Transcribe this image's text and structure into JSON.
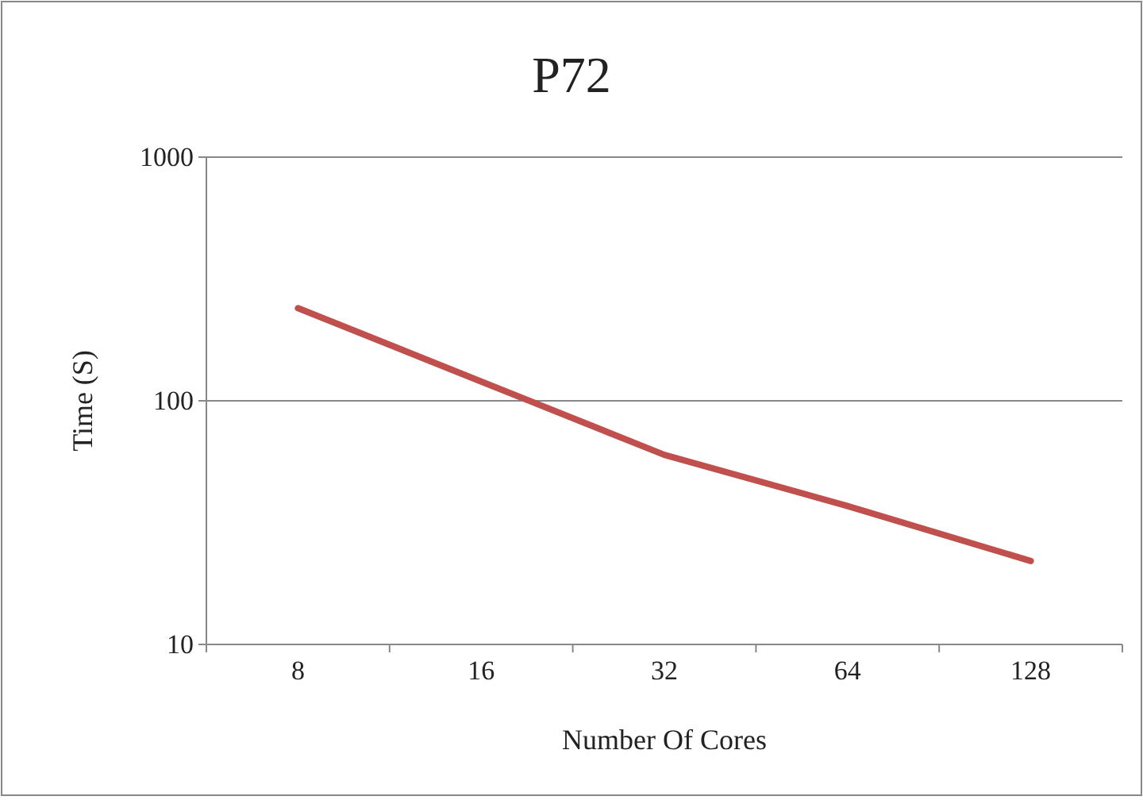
{
  "chart_data": {
    "type": "line",
    "title": "P72",
    "xlabel": "Number Of Cores",
    "ylabel": "Time (S)",
    "categories": [
      "8",
      "16",
      "32",
      "64",
      "128"
    ],
    "series": [
      {
        "color": "#c0504d",
        "values": [
          240,
          120,
          60,
          37,
          22
        ]
      }
    ],
    "log": true,
    "ylim": [
      10,
      1000
    ],
    "yticks": [
      10,
      100,
      1000
    ],
    "grid": "y",
    "marker": "none",
    "line_style": "solid"
  }
}
